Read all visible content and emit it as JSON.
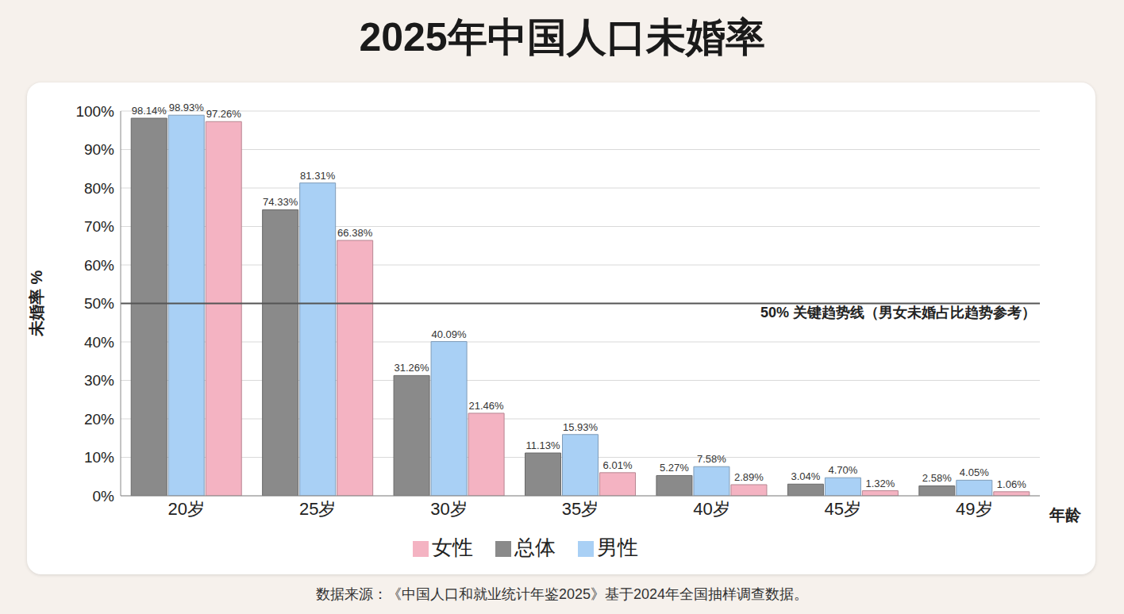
{
  "chart_data": {
    "type": "bar",
    "title": "2025年中国人口未婚率",
    "y_label": "未婚率 %",
    "x_label": "年龄",
    "categories": [
      "20岁",
      "25岁",
      "30岁",
      "35岁",
      "40岁",
      "45岁",
      "49岁"
    ],
    "series": [
      {
        "name": "总体",
        "color": "#8a8a8a",
        "values": [
          98.14,
          74.33,
          31.26,
          11.13,
          5.27,
          3.04,
          2.58
        ],
        "value_labels": [
          "98.14%",
          "74.33%",
          "31.26%",
          "11.13%",
          "5.27%",
          "3.04%",
          "2.58%"
        ]
      },
      {
        "name": "男性",
        "color": "#a9d0f5",
        "values": [
          98.93,
          81.31,
          40.09,
          15.93,
          7.58,
          4.7,
          4.05
        ],
        "value_labels": [
          "98.93%",
          "81.31%",
          "40.09%",
          "15.93%",
          "7.58%",
          "4.70%",
          "4.05%"
        ]
      },
      {
        "name": "女性",
        "color": "#f4b3c2",
        "values": [
          97.26,
          66.38,
          21.46,
          6.01,
          2.89,
          1.32,
          1.06
        ],
        "value_labels": [
          "97.26%",
          "66.38%",
          "21.46%",
          "6.01%",
          "2.89%",
          "1.32%",
          "1.06%"
        ]
      }
    ],
    "ylim": [
      0,
      100
    ],
    "yticks": [
      {
        "value": 0,
        "label": "0%"
      },
      {
        "value": 10,
        "label": "10%"
      },
      {
        "value": 20,
        "label": "20%"
      },
      {
        "value": 30,
        "label": "30%"
      },
      {
        "value": 40,
        "label": "40%"
      },
      {
        "value": 50,
        "label": "50%"
      },
      {
        "value": 60,
        "label": "60%"
      },
      {
        "value": 70,
        "label": "70%"
      },
      {
        "value": 80,
        "label": "80%"
      },
      {
        "value": 90,
        "label": "90%"
      },
      {
        "value": 100,
        "label": "100%"
      }
    ],
    "grid": true,
    "legend": "bottom",
    "data_labels": true,
    "reference_line": {
      "value": 50,
      "label": "50% 关键趋势线（男女未婚占比趋势参考）"
    },
    "source": "数据来源：《中国人口和就业统计年鉴2025》基于2024年全国抽样调查数据。"
  }
}
